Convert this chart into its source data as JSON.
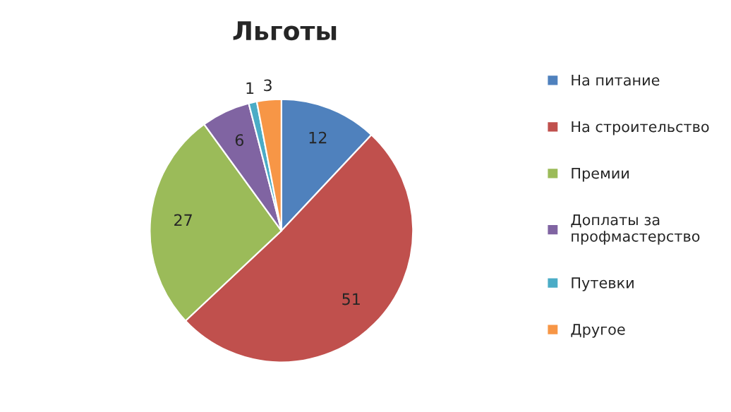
{
  "chart_data": {
    "type": "pie",
    "title": "Льготы",
    "categories": [
      "На питание",
      "На строительство",
      "Премии",
      "Доплаты за\nпрофмастерство",
      "Путевки",
      "Другое"
    ],
    "values": [
      12,
      51,
      27,
      6,
      1,
      3
    ],
    "colors": [
      "#4f81bd",
      "#c0504d",
      "#9bbb59",
      "#8064a2",
      "#4bacc6",
      "#f79646"
    ],
    "data_labels": true,
    "legend": "right"
  }
}
